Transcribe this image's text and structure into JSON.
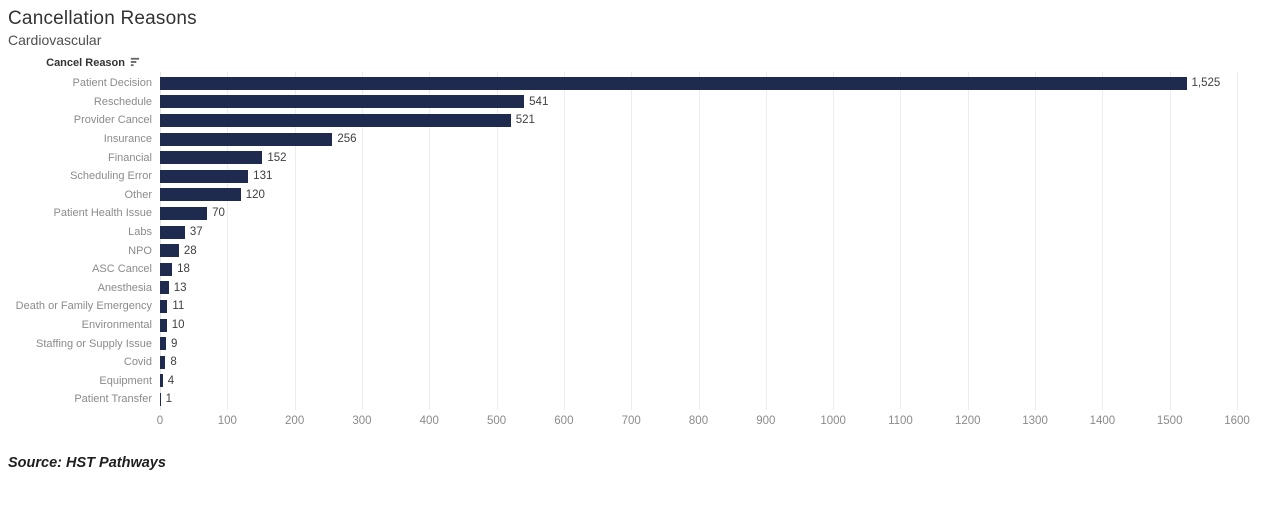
{
  "page": {
    "title": "Cancellation Reasons",
    "subtitle": "Cardiovascular",
    "source": "Source: HST Pathways"
  },
  "column_header": {
    "label": "Cancel Reason",
    "sort_icon": "sort-descending-icon",
    "sort_order": "descending"
  },
  "chart_data": {
    "type": "bar",
    "orientation": "horizontal",
    "title": "Cancellation Reasons",
    "subtitle": "Cardiovascular",
    "ylabel": "Cancel Reason",
    "xlabel": "",
    "categories": [
      "Patient Decision",
      "Reschedule",
      "Provider Cancel",
      "Insurance",
      "Financial",
      "Scheduling Error",
      "Other",
      "Patient Health Issue",
      "Labs",
      "NPO",
      "ASC Cancel",
      "Anesthesia",
      "Death or Family Emergency",
      "Environmental",
      "Staffing or Supply Issue",
      "Covid",
      "Equipment",
      "Patient Transfer"
    ],
    "values": [
      1525,
      541,
      521,
      256,
      152,
      131,
      120,
      70,
      37,
      28,
      18,
      13,
      11,
      10,
      9,
      8,
      4,
      1
    ],
    "value_labels": [
      "1,525",
      "541",
      "521",
      "256",
      "152",
      "131",
      "120",
      "70",
      "37",
      "28",
      "18",
      "13",
      "11",
      "10",
      "9",
      "8",
      "4",
      "1"
    ],
    "xlim": [
      0,
      1600
    ],
    "x_ticks": [
      0,
      100,
      200,
      300,
      400,
      500,
      600,
      700,
      800,
      900,
      1000,
      1100,
      1200,
      1300,
      1400,
      1500,
      1600
    ],
    "grid": "vertical",
    "legend": "none",
    "bar_color": "#1e2a4e",
    "gridline_color": "#ededed",
    "label_color": "#8b8b8b",
    "value_label_color": "#3f3f3f"
  }
}
